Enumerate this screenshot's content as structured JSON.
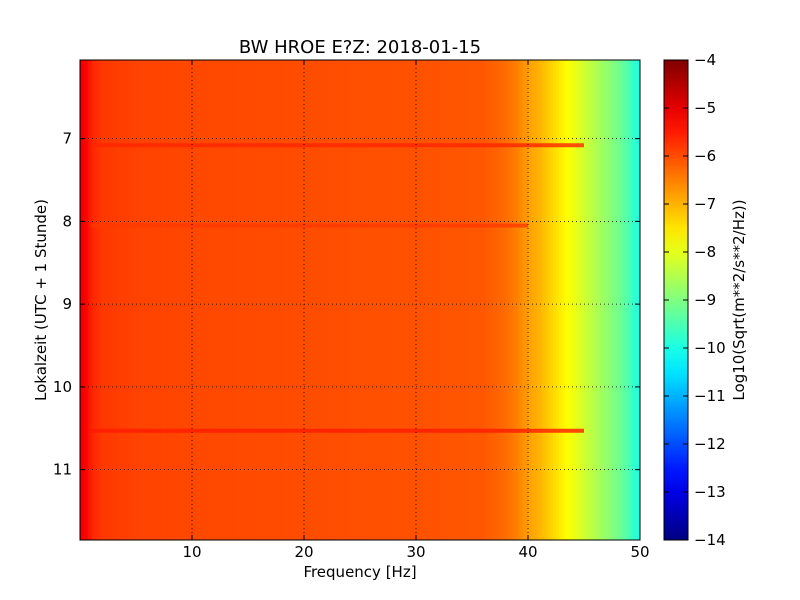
{
  "chart_data": {
    "type": "heatmap",
    "title": "BW HROE E?Z: 2018-01-15",
    "xlabel": "Frequency [Hz]",
    "ylabel": "Lokalzeit (UTC + 1 Stunde)",
    "xlim": [
      0,
      50
    ],
    "ylim": [
      11.85,
      6.05
    ],
    "x_ticks": [
      10,
      20,
      30,
      40,
      50
    ],
    "y_ticks": [
      7,
      8,
      9,
      10,
      11
    ],
    "grid": true,
    "colormap": "jet",
    "colorbar": {
      "label": "Log10(Sqrt(m**2/s**2/Hz))",
      "range": [
        -14,
        -4
      ],
      "ticks": [
        -4,
        -5,
        -6,
        -7,
        -8,
        -9,
        -10,
        -11,
        -12,
        -13,
        -14
      ]
    },
    "frequency_profile": {
      "x": [
        0,
        0.5,
        1,
        2,
        5,
        10,
        20,
        30,
        36,
        38,
        39,
        40,
        41,
        42,
        43,
        44,
        45,
        46,
        47,
        48,
        49,
        49.5,
        50
      ],
      "values": [
        -5.1,
        -5.2,
        -5.6,
        -5.8,
        -5.9,
        -5.95,
        -6.0,
        -6.05,
        -6.1,
        -6.3,
        -6.5,
        -6.8,
        -7.0,
        -7.3,
        -7.6,
        -7.9,
        -8.2,
        -8.5,
        -8.8,
        -9.1,
        -9.5,
        -9.8,
        -10.0
      ]
    },
    "bright_bands": [
      {
        "time": 7.08,
        "value": -5.6,
        "freq_max": 45
      },
      {
        "time": 8.05,
        "value": -5.8,
        "freq_max": 40
      },
      {
        "time": 10.53,
        "value": -5.5,
        "freq_max": 45
      }
    ]
  }
}
